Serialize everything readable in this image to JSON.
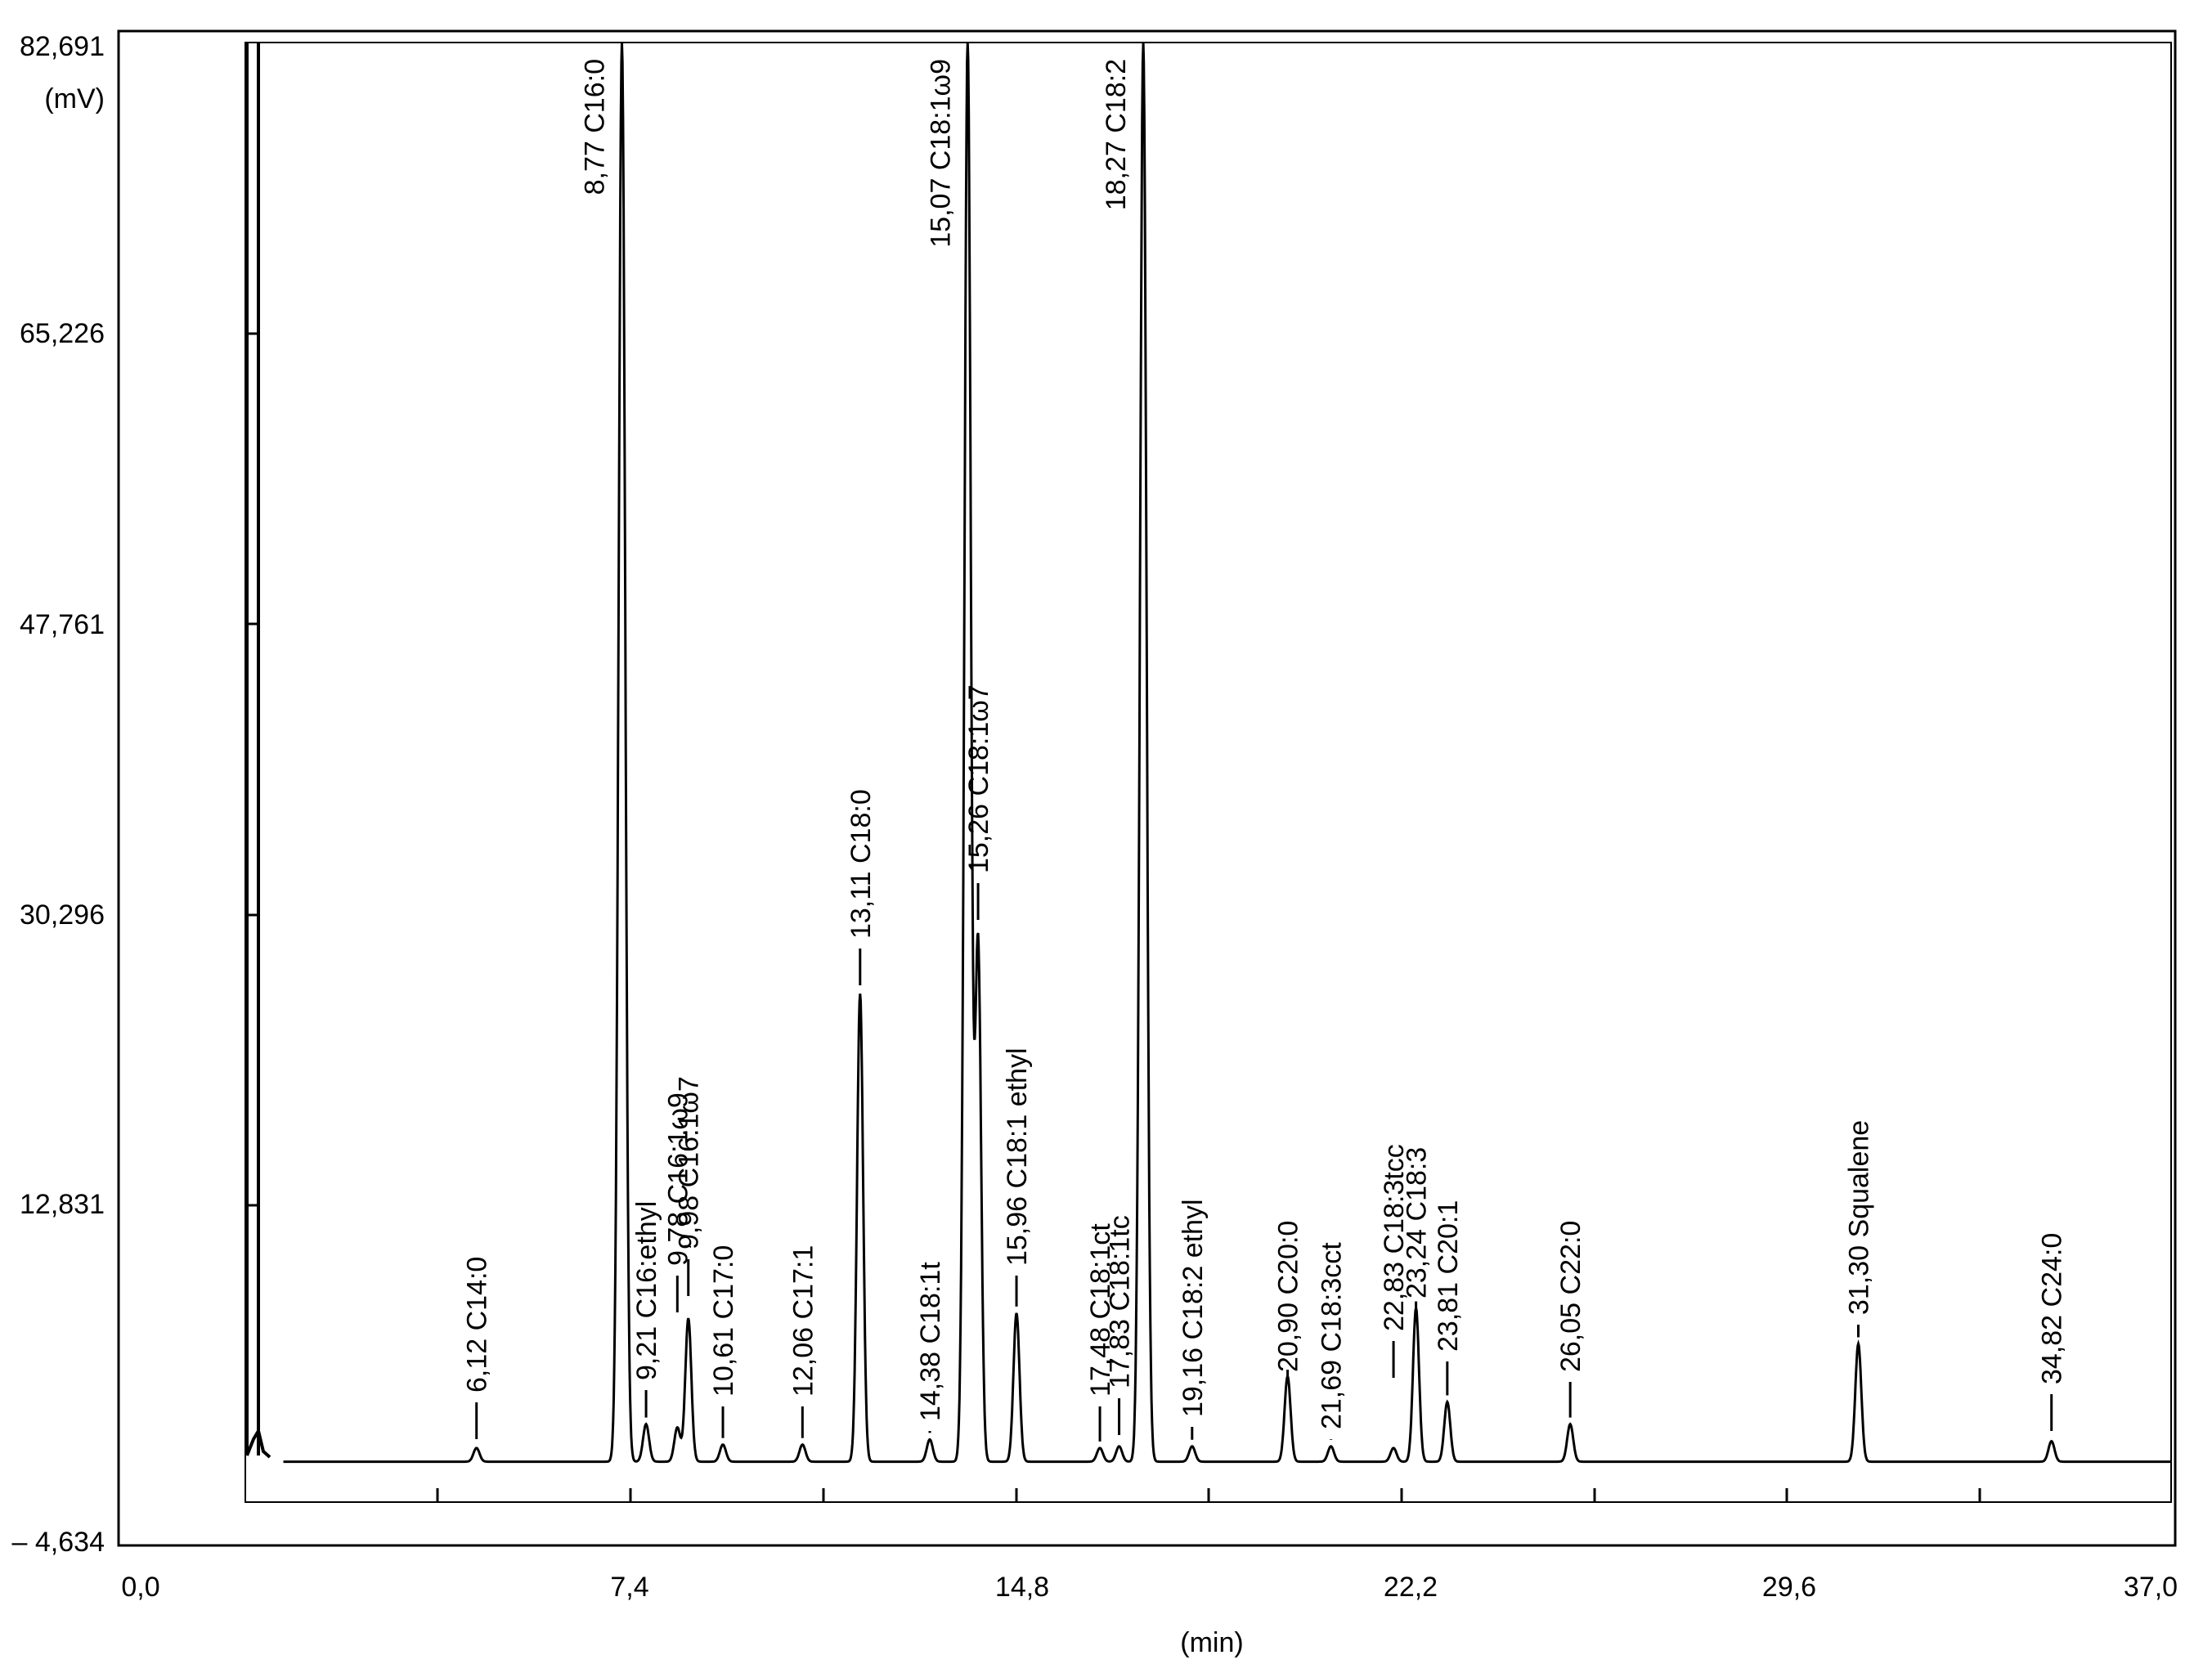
{
  "chart_data": {
    "type": "line",
    "ylabel": "(mV)",
    "xlabel": "(min)",
    "x_tick_labels": [
      "0,0",
      "7,4",
      "14,8",
      "22,2",
      "29,6",
      "37,0"
    ],
    "y_tick_labels": [
      "82,691",
      "65,226",
      "47,761",
      "30,296",
      "12,831",
      "– 4,634"
    ],
    "xlim": [
      0,
      37
    ],
    "ylim": [
      -4.634,
      82.691
    ],
    "baseline": -0.4,
    "peaks": [
      {
        "label": "6,12 C14:0",
        "rt": 6.12,
        "height": 0.4
      },
      {
        "label": "8,77 C16:0",
        "rt": 8.77,
        "height": 82.691
      },
      {
        "label": "9,21 C16:ethyl",
        "rt": 9.21,
        "height": 1.8
      },
      {
        "label": "9,78 C16:1ω9",
        "rt": 9.78,
        "height": 1.6
      },
      {
        "label": "9,98 C16:1ω7",
        "rt": 9.98,
        "height": 8.0
      },
      {
        "label": "10,61 C17:0",
        "rt": 10.61,
        "height": 0.6
      },
      {
        "label": "12,06 C17:1",
        "rt": 12.06,
        "height": 0.6
      },
      {
        "label": "13,11 C18:0",
        "rt": 13.11,
        "height": 27.0
      },
      {
        "label": "14,38 C18:1t",
        "rt": 14.38,
        "height": 0.9
      },
      {
        "label": "15,07 C18:1ω9",
        "rt": 15.07,
        "height": 82.691
      },
      {
        "label": "15,26 C18:1ω7",
        "rt": 15.26,
        "height": 30.0
      },
      {
        "label": "15,96 C18:1 ethyl",
        "rt": 15.96,
        "height": 8.3
      },
      {
        "label": "17,48 C18:1ct",
        "rt": 17.48,
        "height": 0.4
      },
      {
        "label": "17,83 C18:1tc",
        "rt": 17.83,
        "height": 0.5
      },
      {
        "label": "18,27 C18:2",
        "rt": 18.27,
        "height": 82.691
      },
      {
        "label": "19,16 C18:2 ethyl",
        "rt": 19.16,
        "height": 0.5
      },
      {
        "label": "20,90 C20:0",
        "rt": 20.9,
        "height": 4.6
      },
      {
        "label": "21,69 C18:3cct",
        "rt": 21.69,
        "height": 0.5
      },
      {
        "label": "22,83 C18:3tcc",
        "rt": 22.83,
        "height": 0.4
      },
      {
        "label": "23,24 C18:3",
        "rt": 23.24,
        "height": 8.6
      },
      {
        "label": "23,81 C20:1",
        "rt": 23.81,
        "height": 3.1
      },
      {
        "label": "26,05 C22:0",
        "rt": 26.05,
        "height": 1.8
      },
      {
        "label": "31,30 Squalene",
        "rt": 31.3,
        "height": 6.5
      },
      {
        "label": "34,82 C24:0",
        "rt": 34.82,
        "height": 0.8
      }
    ]
  }
}
